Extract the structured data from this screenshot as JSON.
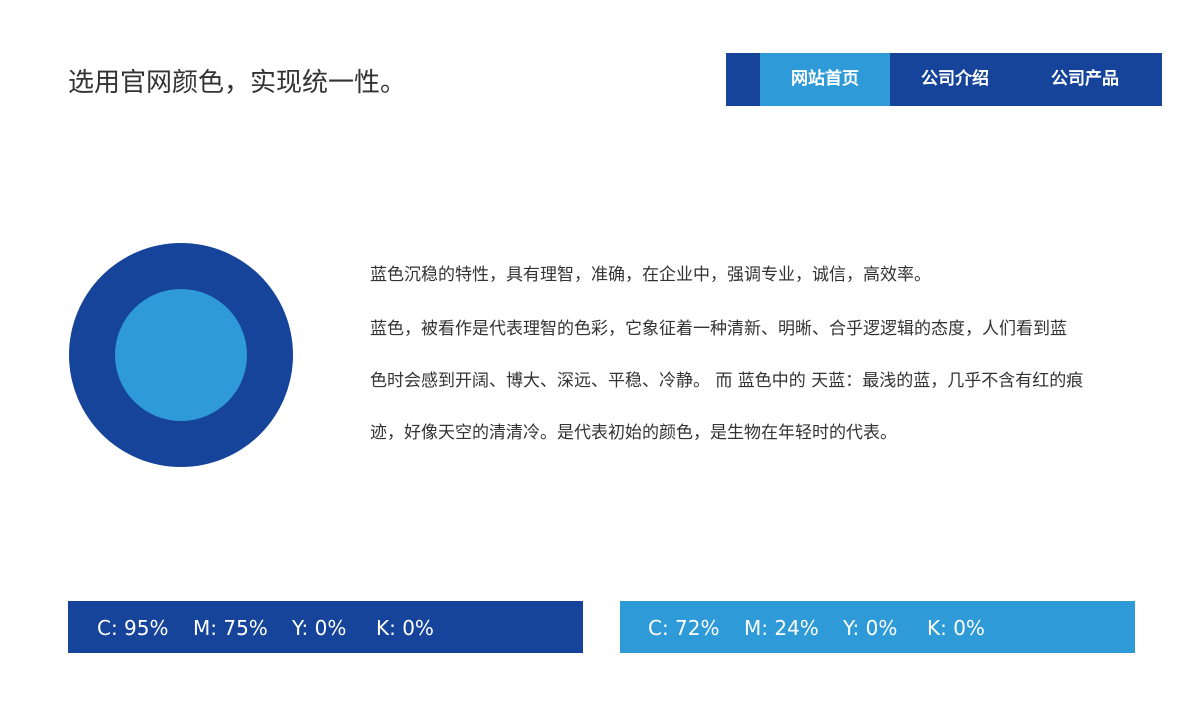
{
  "header": {
    "title": "选用官网颜色，实现统一性。",
    "nav": [
      "网站首页",
      "公司介绍",
      "公司产品"
    ]
  },
  "content": {
    "lines": [
      "蓝色沉稳的特性，具有理智，准确，在企业中，强调专业，诚信，高效率。",
      "蓝色，被看作是代表理智的色彩，它象征着一种清新、明晰、合乎逻逻辑的态度，人们看到蓝",
      "色时会感到开阔、博大、深远、平稳、冷静。 而 蓝色中的 天蓝：最浅的蓝，几乎不含有红的痕",
      "迹，好像天空的清清冷。是代表初始的颜色，是生物在年轻时的代表。"
    ]
  },
  "swatches": [
    [
      "C: 95%",
      "M: 75%",
      "Y: 0%",
      "K: 0%"
    ],
    [
      "C: 72%",
      "M: 24%",
      "Y: 0%",
      "K: 0%"
    ]
  ]
}
